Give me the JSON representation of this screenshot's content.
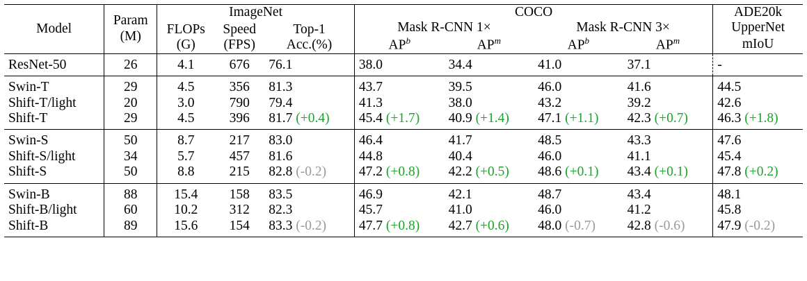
{
  "header": {
    "model": "Model",
    "param": "Param",
    "param_unit": "(M)",
    "imagenet": "ImageNet",
    "flops": "FLOPs",
    "flops_unit": "(G)",
    "speed": "Speed",
    "speed_unit": "(FPS)",
    "top1": "Top-1",
    "top1_unit": "Acc.(%)",
    "coco": "COCO",
    "mask1x": "Mask R-CNN 1×",
    "mask3x": "Mask R-CNN 3×",
    "ap": "AP",
    "ap_b_sup": "b",
    "ap_m_sup": "m",
    "ade": "ADE20k",
    "uppernet": "UpperNet",
    "miou": "mIoU"
  },
  "groups": [
    {
      "rows": [
        {
          "model": "ResNet-50",
          "param": "26",
          "flops": "4.1",
          "speed": "676",
          "top1": "76.1",
          "top1_d": "",
          "b1": "38.0",
          "b1_d": "",
          "m1": "34.4",
          "m1_d": "",
          "b3": "41.0",
          "b3_d": "",
          "m3": "37.1",
          "m3_d": "",
          "miou": "-",
          "miou_d": ""
        }
      ]
    },
    {
      "rows": [
        {
          "model": "Swin-T",
          "param": "29",
          "flops": "4.5",
          "speed": "356",
          "top1": "81.3",
          "top1_d": "",
          "b1": "43.7",
          "b1_d": "",
          "m1": "39.5",
          "m1_d": "",
          "b3": "46.0",
          "b3_d": "",
          "m3": "41.6",
          "m3_d": "",
          "miou": "44.5",
          "miou_d": ""
        },
        {
          "model": "Shift-T/light",
          "param": "20",
          "flops": "3.0",
          "speed": "790",
          "top1": "79.4",
          "top1_d": "",
          "b1": "41.3",
          "b1_d": "",
          "m1": "38.0",
          "m1_d": "",
          "b3": "43.2",
          "b3_d": "",
          "m3": "39.2",
          "m3_d": "",
          "miou": "42.6",
          "miou_d": ""
        },
        {
          "model": "Shift-T",
          "param": "29",
          "flops": "4.5",
          "speed": "396",
          "top1": "81.7",
          "top1_d": "(+0.4)",
          "b1": "45.4",
          "b1_d": "(+1.7)",
          "m1": "40.9",
          "m1_d": "(+1.4)",
          "b3": "47.1",
          "b3_d": "(+1.1)",
          "m3": "42.3",
          "m3_d": "(+0.7)",
          "miou": "46.3",
          "miou_d": "(+1.8)"
        }
      ]
    },
    {
      "rows": [
        {
          "model": "Swin-S",
          "param": "50",
          "flops": "8.7",
          "speed": "217",
          "top1": "83.0",
          "top1_d": "",
          "b1": "46.4",
          "b1_d": "",
          "m1": "41.7",
          "m1_d": "",
          "b3": "48.5",
          "b3_d": "",
          "m3": "43.3",
          "m3_d": "",
          "miou": "47.6",
          "miou_d": ""
        },
        {
          "model": "Shift-S/light",
          "param": "34",
          "flops": "5.7",
          "speed": "457",
          "top1": "81.6",
          "top1_d": "",
          "b1": "44.8",
          "b1_d": "",
          "m1": "40.4",
          "m1_d": "",
          "b3": "46.0",
          "b3_d": "",
          "m3": "41.1",
          "m3_d": "",
          "miou": "45.4",
          "miou_d": ""
        },
        {
          "model": "Shift-S",
          "param": "50",
          "flops": "8.8",
          "speed": "215",
          "top1": "82.8",
          "top1_d": "(-0.2)",
          "b1": "47.2",
          "b1_d": "(+0.8)",
          "m1": "42.2",
          "m1_d": "(+0.5)",
          "b3": "48.6",
          "b3_d": "(+0.1)",
          "m3": "43.4",
          "m3_d": "(+0.1)",
          "miou": "47.8",
          "miou_d": "(+0.2)"
        }
      ]
    },
    {
      "rows": [
        {
          "model": "Swin-B",
          "param": "88",
          "flops": "15.4",
          "speed": "158",
          "top1": "83.5",
          "top1_d": "",
          "b1": "46.9",
          "b1_d": "",
          "m1": "42.1",
          "m1_d": "",
          "b3": "48.7",
          "b3_d": "",
          "m3": "43.4",
          "m3_d": "",
          "miou": "48.1",
          "miou_d": ""
        },
        {
          "model": "Shift-B/light",
          "param": "60",
          "flops": "10.2",
          "speed": "312",
          "top1": "82.3",
          "top1_d": "",
          "b1": "45.7",
          "b1_d": "",
          "m1": "41.0",
          "m1_d": "",
          "b3": "46.0",
          "b3_d": "",
          "m3": "41.2",
          "m3_d": "",
          "miou": "45.8",
          "miou_d": ""
        },
        {
          "model": "Shift-B",
          "param": "89",
          "flops": "15.6",
          "speed": "154",
          "top1": "83.3",
          "top1_d": "(-0.2)",
          "b1": "47.7",
          "b1_d": "(+0.8)",
          "m1": "42.7",
          "m1_d": "(+0.6)",
          "b3": "48.0",
          "b3_d": "(-0.7)",
          "m3": "42.8",
          "m3_d": "(-0.6)",
          "miou": "47.9",
          "miou_d": "(-0.2)"
        }
      ]
    }
  ],
  "colors": {
    "positive": "#1fa32e",
    "negative": "#9a9a9a"
  }
}
